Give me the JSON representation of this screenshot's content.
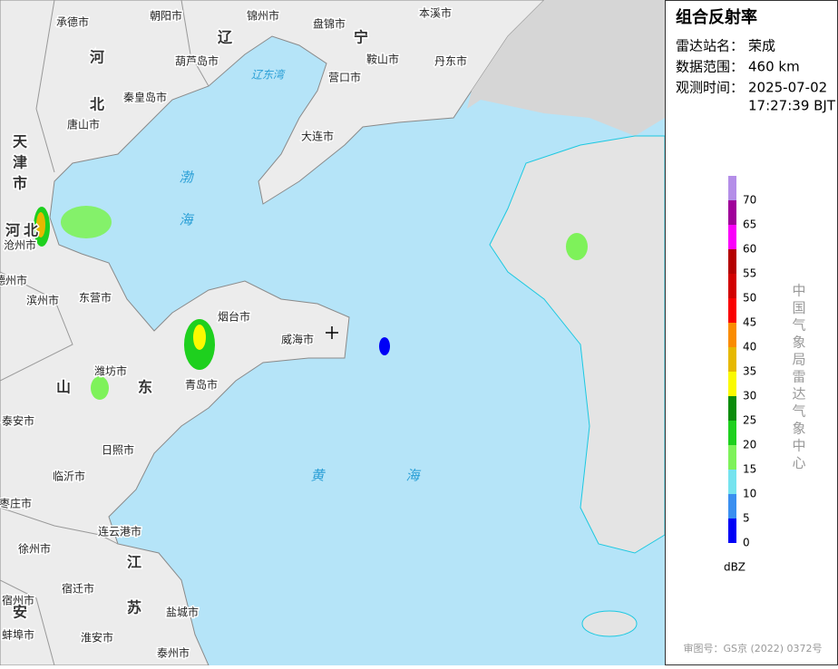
{
  "panel": {
    "title": "组合反射率",
    "rows": [
      {
        "label": "雷达站名：",
        "lines": [
          "荣成"
        ]
      },
      {
        "label": "数据范围：",
        "lines": [
          "460 km"
        ]
      },
      {
        "label": "观测时间：",
        "lines": [
          "2025-07-02",
          "17:27:39 BJT"
        ]
      }
    ]
  },
  "legend": {
    "values": [
      0,
      5,
      10,
      15,
      20,
      25,
      30,
      35,
      40,
      45,
      50,
      55,
      60,
      65,
      70
    ],
    "colors": [
      "#0000f6",
      "#3a8ff0",
      "#75e3ef",
      "#7ef25a",
      "#1ed01e",
      "#0a8c0a",
      "#fafa00",
      "#e6b800",
      "#fa8c00",
      "#fa0000",
      "#d20000",
      "#b40000",
      "#fa00fa",
      "#a0009a",
      "#b48ee8"
    ],
    "unit": "dBZ"
  },
  "credit": "中国气象局雷达气象中心",
  "approval": "审图号：GS京 (2022) 0372号",
  "map": {
    "cities": [
      "承德市",
      "朝阳市",
      "锦州市",
      "盘锦市",
      "本溪市",
      "葫芦岛市",
      "鞍山市",
      "丹东市",
      "秦皇岛市",
      "营口市",
      "唐山市",
      "大连市",
      "沧州市",
      "德州市",
      "滨州市",
      "东营市",
      "烟台市",
      "威海市",
      "潍坊市",
      "青岛市",
      "泰安市",
      "日照市",
      "临沂市",
      "枣庄市",
      "连云港市",
      "徐州市",
      "宿迁市",
      "宿州市",
      "盐城市",
      "淮安市",
      "泰州市",
      "蚌埠市"
    ],
    "provinces": [
      "辽",
      "宁",
      "河",
      "北",
      "天",
      "津",
      "市",
      "河",
      "北",
      "山",
      "东",
      "江",
      "苏",
      "安"
    ],
    "seas": [
      "辽东湾",
      "渤",
      "海",
      "黄",
      "海"
    ]
  }
}
